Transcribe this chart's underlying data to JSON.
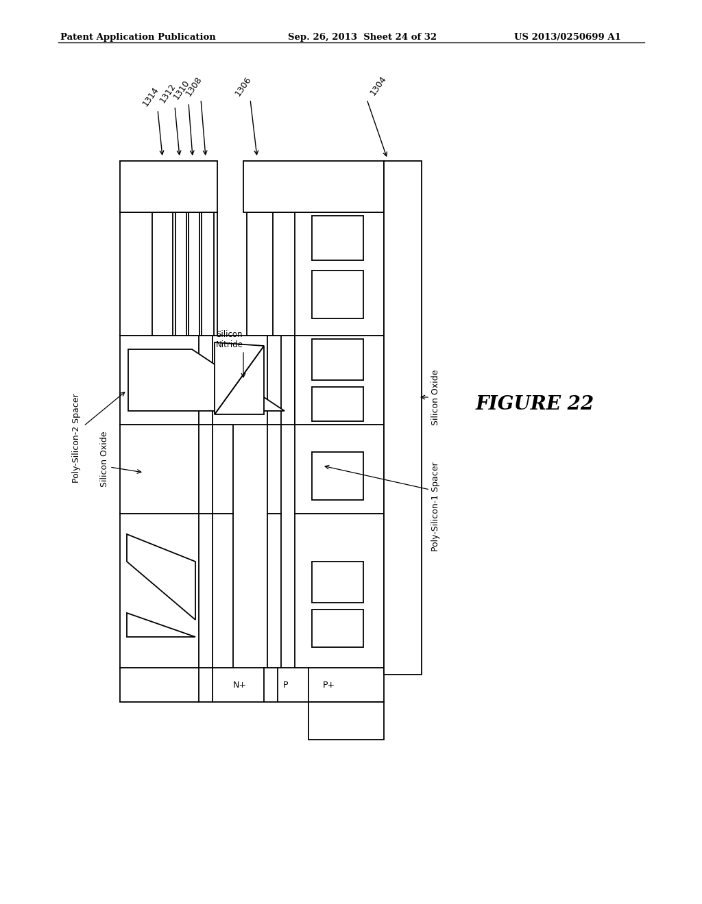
{
  "header_left": "Patent Application Publication",
  "header_mid": "Sep. 26, 2013  Sheet 24 of 32",
  "header_right": "US 2013/0250699 A1",
  "title": "FIGURE 22",
  "background": "#ffffff",
  "lc": "#000000",
  "lw": 1.3
}
